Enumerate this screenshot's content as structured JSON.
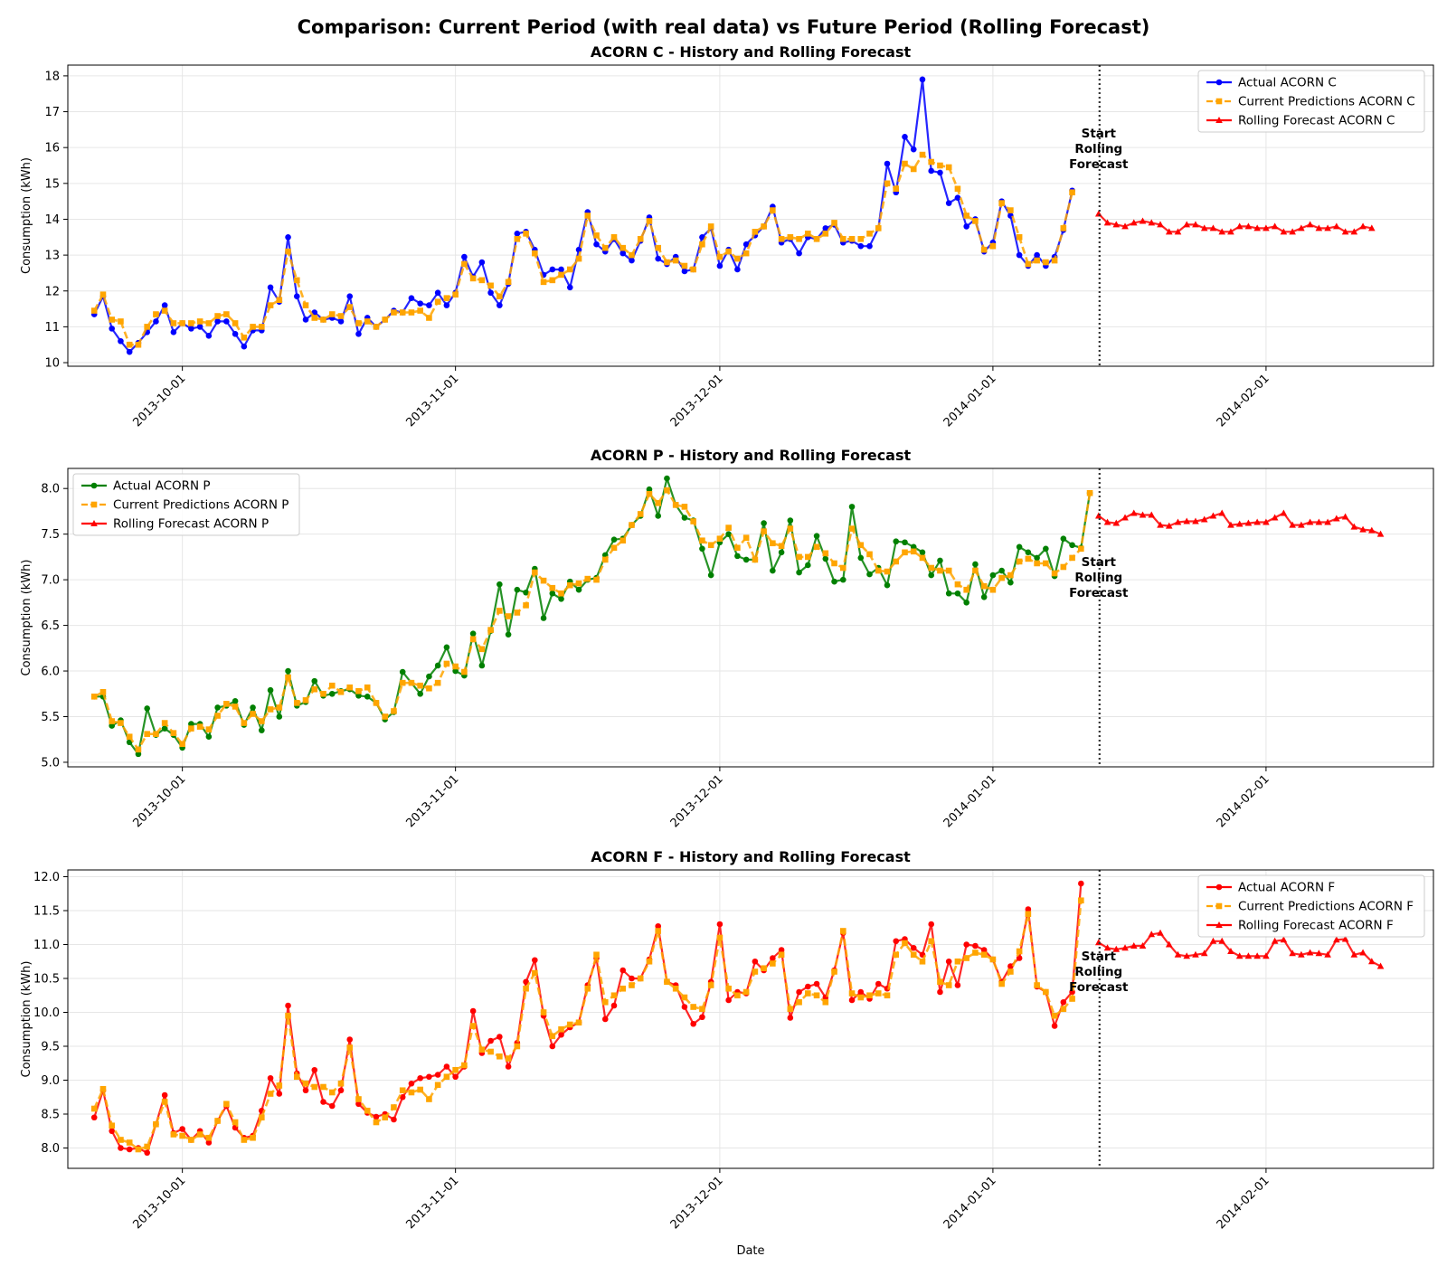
{
  "title": "Comparison: Current Period (with real data) vs Future Period (Rolling Forecast)",
  "xlabel": "Date",
  "annotation": "Start\nRolling\nForecast",
  "x_ticks": [
    "2013-10-01",
    "2013-11-01",
    "2013-12-01",
    "2014-01-01",
    "2014-02-01"
  ],
  "colors": {
    "actual_c": "#0000ff",
    "actual_p": "#008000",
    "actual_f": "#ff0000",
    "predictions": "#ffa500",
    "forecast": "#ff0000",
    "divider": "#333333"
  },
  "chart_data": [
    {
      "type": "line",
      "title": "ACORN C - History and Rolling Forecast",
      "ylabel": "Consumption (kWh)",
      "ylim": [
        9.9,
        18.3
      ],
      "yticks": [
        10,
        11,
        12,
        13,
        14,
        15,
        16,
        17,
        18
      ],
      "xlim": [
        "2013-09-18",
        "2014-02-20"
      ],
      "grid": true,
      "legend_position": "top-right",
      "forecast_start": "2014-01-13",
      "history_start": "2013-09-21",
      "series": [
        {
          "name": "Actual ACORN C",
          "role": "actual",
          "color": "#0000ff",
          "marker": "circle",
          "style": "solid",
          "values": [
            11.35,
            11.85,
            10.95,
            10.6,
            10.3,
            10.55,
            10.85,
            11.15,
            11.6,
            10.85,
            11.1,
            10.95,
            11.0,
            10.75,
            11.15,
            11.15,
            10.8,
            10.45,
            10.9,
            10.9,
            12.1,
            11.7,
            13.5,
            11.85,
            11.2,
            11.4,
            11.2,
            11.25,
            11.15,
            11.85,
            10.8,
            11.25,
            11.0,
            11.2,
            11.45,
            11.4,
            11.8,
            11.65,
            11.6,
            11.95,
            11.6,
            11.95,
            12.95,
            12.4,
            12.8,
            11.95,
            11.6,
            12.2,
            13.6,
            13.65,
            13.15,
            12.45,
            12.6,
            12.6,
            12.1,
            13.15,
            14.2,
            13.3,
            13.1,
            13.45,
            13.05,
            12.85,
            13.4,
            14.05,
            12.9,
            12.75,
            12.95,
            12.55,
            12.6,
            13.5,
            13.75,
            12.7,
            13.15,
            12.6,
            13.3,
            13.55,
            13.8,
            14.35,
            13.35,
            13.45,
            13.05,
            13.5,
            13.45,
            13.75,
            13.85,
            13.35,
            13.4,
            13.25,
            13.25,
            13.75,
            15.55,
            14.75,
            16.3,
            15.95,
            17.9,
            15.35,
            15.3,
            14.45,
            14.6,
            13.8,
            14.0,
            13.1,
            13.35,
            14.5,
            14.1,
            13.0,
            12.7,
            13.0,
            12.7,
            12.95,
            13.7,
            14.8
          ]
        },
        {
          "name": "Current Predictions ACORN C",
          "role": "predictions",
          "color": "#ffa500",
          "marker": "square",
          "style": "dashed",
          "values": [
            11.45,
            11.9,
            11.2,
            11.15,
            10.5,
            10.5,
            11.0,
            11.35,
            11.45,
            11.1,
            11.1,
            11.1,
            11.15,
            11.1,
            11.3,
            11.35,
            11.1,
            10.7,
            11.0,
            11.0,
            11.6,
            11.75,
            13.1,
            12.3,
            11.6,
            11.25,
            11.2,
            11.35,
            11.3,
            11.55,
            11.1,
            11.15,
            11.0,
            11.2,
            11.4,
            11.4,
            11.4,
            11.45,
            11.25,
            11.7,
            11.8,
            11.9,
            12.75,
            12.35,
            12.3,
            12.15,
            11.85,
            12.25,
            13.45,
            13.6,
            13.05,
            12.25,
            12.3,
            12.45,
            12.6,
            12.9,
            14.1,
            13.55,
            13.2,
            13.5,
            13.2,
            13.0,
            13.45,
            13.95,
            13.2,
            12.8,
            12.85,
            12.7,
            12.6,
            13.3,
            13.8,
            12.95,
            13.1,
            12.9,
            13.05,
            13.65,
            13.8,
            14.25,
            13.45,
            13.5,
            13.45,
            13.6,
            13.45,
            13.6,
            13.9,
            13.45,
            13.45,
            13.45,
            13.6,
            13.75,
            15.0,
            14.85,
            15.55,
            15.4,
            15.8,
            15.6,
            15.5,
            15.45,
            14.85,
            14.1,
            13.95,
            13.15,
            13.25,
            14.45,
            14.25,
            13.5,
            12.75,
            12.85,
            12.8,
            12.85,
            13.75,
            14.75
          ]
        },
        {
          "name": "Rolling Forecast ACORN C",
          "role": "forecast",
          "color": "#ff0000",
          "marker": "triangle",
          "style": "solid",
          "start": "2014-01-13",
          "values": [
            14.15,
            13.9,
            13.85,
            13.8,
            13.9,
            13.95,
            13.9,
            13.85,
            13.65,
            13.65,
            13.85,
            13.85,
            13.75,
            13.75,
            13.65,
            13.65,
            13.8,
            13.8,
            13.75,
            13.75,
            13.8,
            13.65,
            13.65,
            13.75,
            13.85,
            13.75,
            13.75,
            13.8,
            13.65,
            13.65,
            13.8,
            13.75
          ]
        }
      ]
    },
    {
      "type": "line",
      "title": "ACORN P - History and Rolling Forecast",
      "ylabel": "Consumption (kWh)",
      "ylim": [
        4.95,
        8.22
      ],
      "yticks": [
        5.0,
        5.5,
        6.0,
        6.5,
        7.0,
        7.5,
        8.0
      ],
      "xlim": [
        "2013-09-18",
        "2014-02-20"
      ],
      "grid": true,
      "legend_position": "top-left",
      "forecast_start": "2014-01-13",
      "history_start": "2013-09-21",
      "series": [
        {
          "name": "Actual ACORN P",
          "role": "actual",
          "color": "#008000",
          "marker": "circle",
          "style": "solid",
          "values": [
            5.72,
            5.72,
            5.4,
            5.46,
            5.22,
            5.09,
            5.59,
            5.3,
            5.37,
            5.3,
            5.16,
            5.42,
            5.42,
            5.28,
            5.6,
            5.62,
            5.67,
            5.41,
            5.6,
            5.35,
            5.79,
            5.5,
            6.0,
            5.62,
            5.66,
            5.89,
            5.73,
            5.75,
            5.78,
            5.8,
            5.73,
            5.72,
            5.65,
            5.47,
            5.55,
            5.99,
            5.87,
            5.75,
            5.94,
            6.06,
            6.26,
            6.0,
            5.95,
            6.41,
            6.06,
            6.44,
            6.95,
            6.4,
            6.89,
            6.86,
            7.12,
            6.58,
            6.85,
            6.79,
            6.98,
            6.89,
            7.0,
            7.02,
            7.27,
            7.44,
            7.45,
            7.6,
            7.7,
            7.99,
            7.7,
            8.11,
            7.82,
            7.68,
            7.65,
            7.34,
            7.05,
            7.41,
            7.5,
            7.26,
            7.22,
            7.22,
            7.62,
            7.1,
            7.3,
            7.65,
            7.08,
            7.16,
            7.48,
            7.23,
            6.98,
            7.0,
            7.8,
            7.24,
            7.06,
            7.13,
            6.94,
            7.42,
            7.41,
            7.36,
            7.3,
            7.05,
            7.21,
            6.85,
            6.85,
            6.75,
            7.17,
            6.81,
            7.05,
            7.1,
            6.97,
            7.36,
            7.3,
            7.24,
            7.34,
            7.04,
            7.45,
            7.38,
            7.35,
            7.95
          ]
        },
        {
          "name": "Current Predictions ACORN P",
          "role": "predictions",
          "color": "#ffa500",
          "marker": "square",
          "style": "dashed",
          "values": [
            5.72,
            5.77,
            5.45,
            5.43,
            5.28,
            5.14,
            5.31,
            5.31,
            5.43,
            5.32,
            5.2,
            5.37,
            5.39,
            5.36,
            5.51,
            5.64,
            5.61,
            5.43,
            5.53,
            5.45,
            5.58,
            5.6,
            5.93,
            5.65,
            5.68,
            5.8,
            5.75,
            5.84,
            5.77,
            5.82,
            5.78,
            5.82,
            5.65,
            5.5,
            5.56,
            5.87,
            5.87,
            5.84,
            5.81,
            5.87,
            6.08,
            6.05,
            5.99,
            6.35,
            6.24,
            6.45,
            6.66,
            6.6,
            6.64,
            6.72,
            7.08,
            6.99,
            6.91,
            6.85,
            6.94,
            6.96,
            7.01,
            7.0,
            7.22,
            7.35,
            7.43,
            7.6,
            7.72,
            7.94,
            7.84,
            7.98,
            7.82,
            7.8,
            7.64,
            7.43,
            7.38,
            7.45,
            7.57,
            7.35,
            7.46,
            7.22,
            7.53,
            7.4,
            7.37,
            7.56,
            7.25,
            7.25,
            7.36,
            7.29,
            7.18,
            7.13,
            7.56,
            7.38,
            7.28,
            7.1,
            7.09,
            7.2,
            7.3,
            7.31,
            7.24,
            7.13,
            7.1,
            7.1,
            6.95,
            6.89,
            7.1,
            6.93,
            6.89,
            7.02,
            7.05,
            7.2,
            7.23,
            7.18,
            7.18,
            7.07,
            7.14,
            7.24,
            7.34,
            7.95
          ]
        },
        {
          "name": "Rolling Forecast ACORN P",
          "role": "forecast",
          "color": "#ff0000",
          "marker": "triangle",
          "style": "solid",
          "start": "2014-01-13",
          "values": [
            7.7,
            7.63,
            7.62,
            7.68,
            7.73,
            7.71,
            7.71,
            7.6,
            7.59,
            7.63,
            7.64,
            7.64,
            7.66,
            7.7,
            7.73,
            7.6,
            7.61,
            7.62,
            7.63,
            7.63,
            7.68,
            7.73,
            7.6,
            7.6,
            7.63,
            7.63,
            7.63,
            7.67,
            7.69,
            7.58,
            7.55,
            7.54,
            7.5
          ]
        }
      ]
    },
    {
      "type": "line",
      "title": "ACORN F - History and Rolling Forecast",
      "ylabel": "Consumption (kWh)",
      "ylim": [
        7.7,
        12.1
      ],
      "yticks": [
        8.0,
        8.5,
        9.0,
        9.5,
        10.0,
        10.5,
        11.0,
        11.5,
        12.0
      ],
      "xlim": [
        "2013-09-18",
        "2014-02-20"
      ],
      "grid": true,
      "legend_position": "top-right",
      "forecast_start": "2014-01-13",
      "history_start": "2013-09-21",
      "series": [
        {
          "name": "Actual ACORN F",
          "role": "actual",
          "color": "#ff0000",
          "marker": "circle",
          "style": "solid",
          "values": [
            8.45,
            8.85,
            8.25,
            8.0,
            7.98,
            8.0,
            7.93,
            8.35,
            8.78,
            8.22,
            8.28,
            8.12,
            8.25,
            8.08,
            8.4,
            8.62,
            8.3,
            8.15,
            8.18,
            8.55,
            9.03,
            8.8,
            10.1,
            9.1,
            8.85,
            9.15,
            8.68,
            8.62,
            8.85,
            9.6,
            8.65,
            8.52,
            8.46,
            8.5,
            8.42,
            8.75,
            8.95,
            9.03,
            9.05,
            9.08,
            9.2,
            9.05,
            9.2,
            10.02,
            9.4,
            9.58,
            9.64,
            9.2,
            9.55,
            10.45,
            10.77,
            9.95,
            9.5,
            9.67,
            9.78,
            9.85,
            10.4,
            10.8,
            9.9,
            10.1,
            10.62,
            10.5,
            10.5,
            10.78,
            11.27,
            10.45,
            10.4,
            10.08,
            9.83,
            9.93,
            10.45,
            11.3,
            10.18,
            10.3,
            10.28,
            10.75,
            10.62,
            10.8,
            10.92,
            9.92,
            10.3,
            10.38,
            10.42,
            10.22,
            10.62,
            11.17,
            10.18,
            10.3,
            10.2,
            10.42,
            10.35,
            11.05,
            11.08,
            10.95,
            10.85,
            11.3,
            10.3,
            10.75,
            10.4,
            11.0,
            10.98,
            10.92,
            10.78,
            10.45,
            10.68,
            10.8,
            11.52,
            10.38,
            10.3,
            9.8,
            10.15,
            10.3,
            11.9
          ]
        },
        {
          "name": "Current Predictions ACORN F",
          "role": "predictions",
          "color": "#ffa500",
          "marker": "square",
          "style": "dashed",
          "values": [
            8.58,
            8.87,
            8.33,
            8.12,
            8.08,
            7.98,
            8.02,
            8.35,
            8.68,
            8.2,
            8.18,
            8.12,
            8.2,
            8.15,
            8.4,
            8.65,
            8.38,
            8.12,
            8.15,
            8.45,
            8.8,
            8.92,
            9.95,
            9.05,
            8.95,
            8.9,
            8.9,
            8.82,
            8.95,
            9.48,
            8.72,
            8.55,
            8.38,
            8.45,
            8.6,
            8.85,
            8.82,
            8.86,
            8.72,
            8.93,
            9.05,
            9.15,
            9.22,
            9.8,
            9.45,
            9.42,
            9.35,
            9.32,
            9.5,
            10.35,
            10.58,
            10.0,
            9.65,
            9.75,
            9.82,
            9.85,
            10.35,
            10.85,
            10.15,
            10.25,
            10.35,
            10.4,
            10.5,
            10.75,
            11.2,
            10.45,
            10.35,
            10.22,
            10.08,
            10.05,
            10.4,
            11.1,
            10.35,
            10.25,
            10.3,
            10.6,
            10.65,
            10.72,
            10.85,
            10.05,
            10.15,
            10.28,
            10.25,
            10.15,
            10.6,
            11.2,
            10.28,
            10.22,
            10.25,
            10.28,
            10.25,
            10.85,
            11.02,
            10.85,
            10.75,
            11.05,
            10.45,
            10.4,
            10.75,
            10.8,
            10.88,
            10.85,
            10.78,
            10.42,
            10.6,
            10.9,
            11.45,
            10.4,
            10.3,
            9.95,
            10.05,
            10.2,
            11.65
          ]
        },
        {
          "name": "Rolling Forecast ACORN F",
          "role": "forecast",
          "color": "#ff0000",
          "marker": "triangle",
          "style": "solid",
          "start": "2014-01-13",
          "values": [
            11.03,
            10.95,
            10.93,
            10.95,
            10.98,
            10.98,
            11.15,
            11.17,
            11.0,
            10.85,
            10.83,
            10.85,
            10.87,
            11.05,
            11.05,
            10.9,
            10.83,
            10.83,
            10.83,
            10.83,
            11.05,
            11.07,
            10.87,
            10.85,
            10.88,
            10.87,
            10.85,
            11.07,
            11.08,
            10.85,
            10.88,
            10.75,
            10.68
          ]
        }
      ]
    }
  ]
}
